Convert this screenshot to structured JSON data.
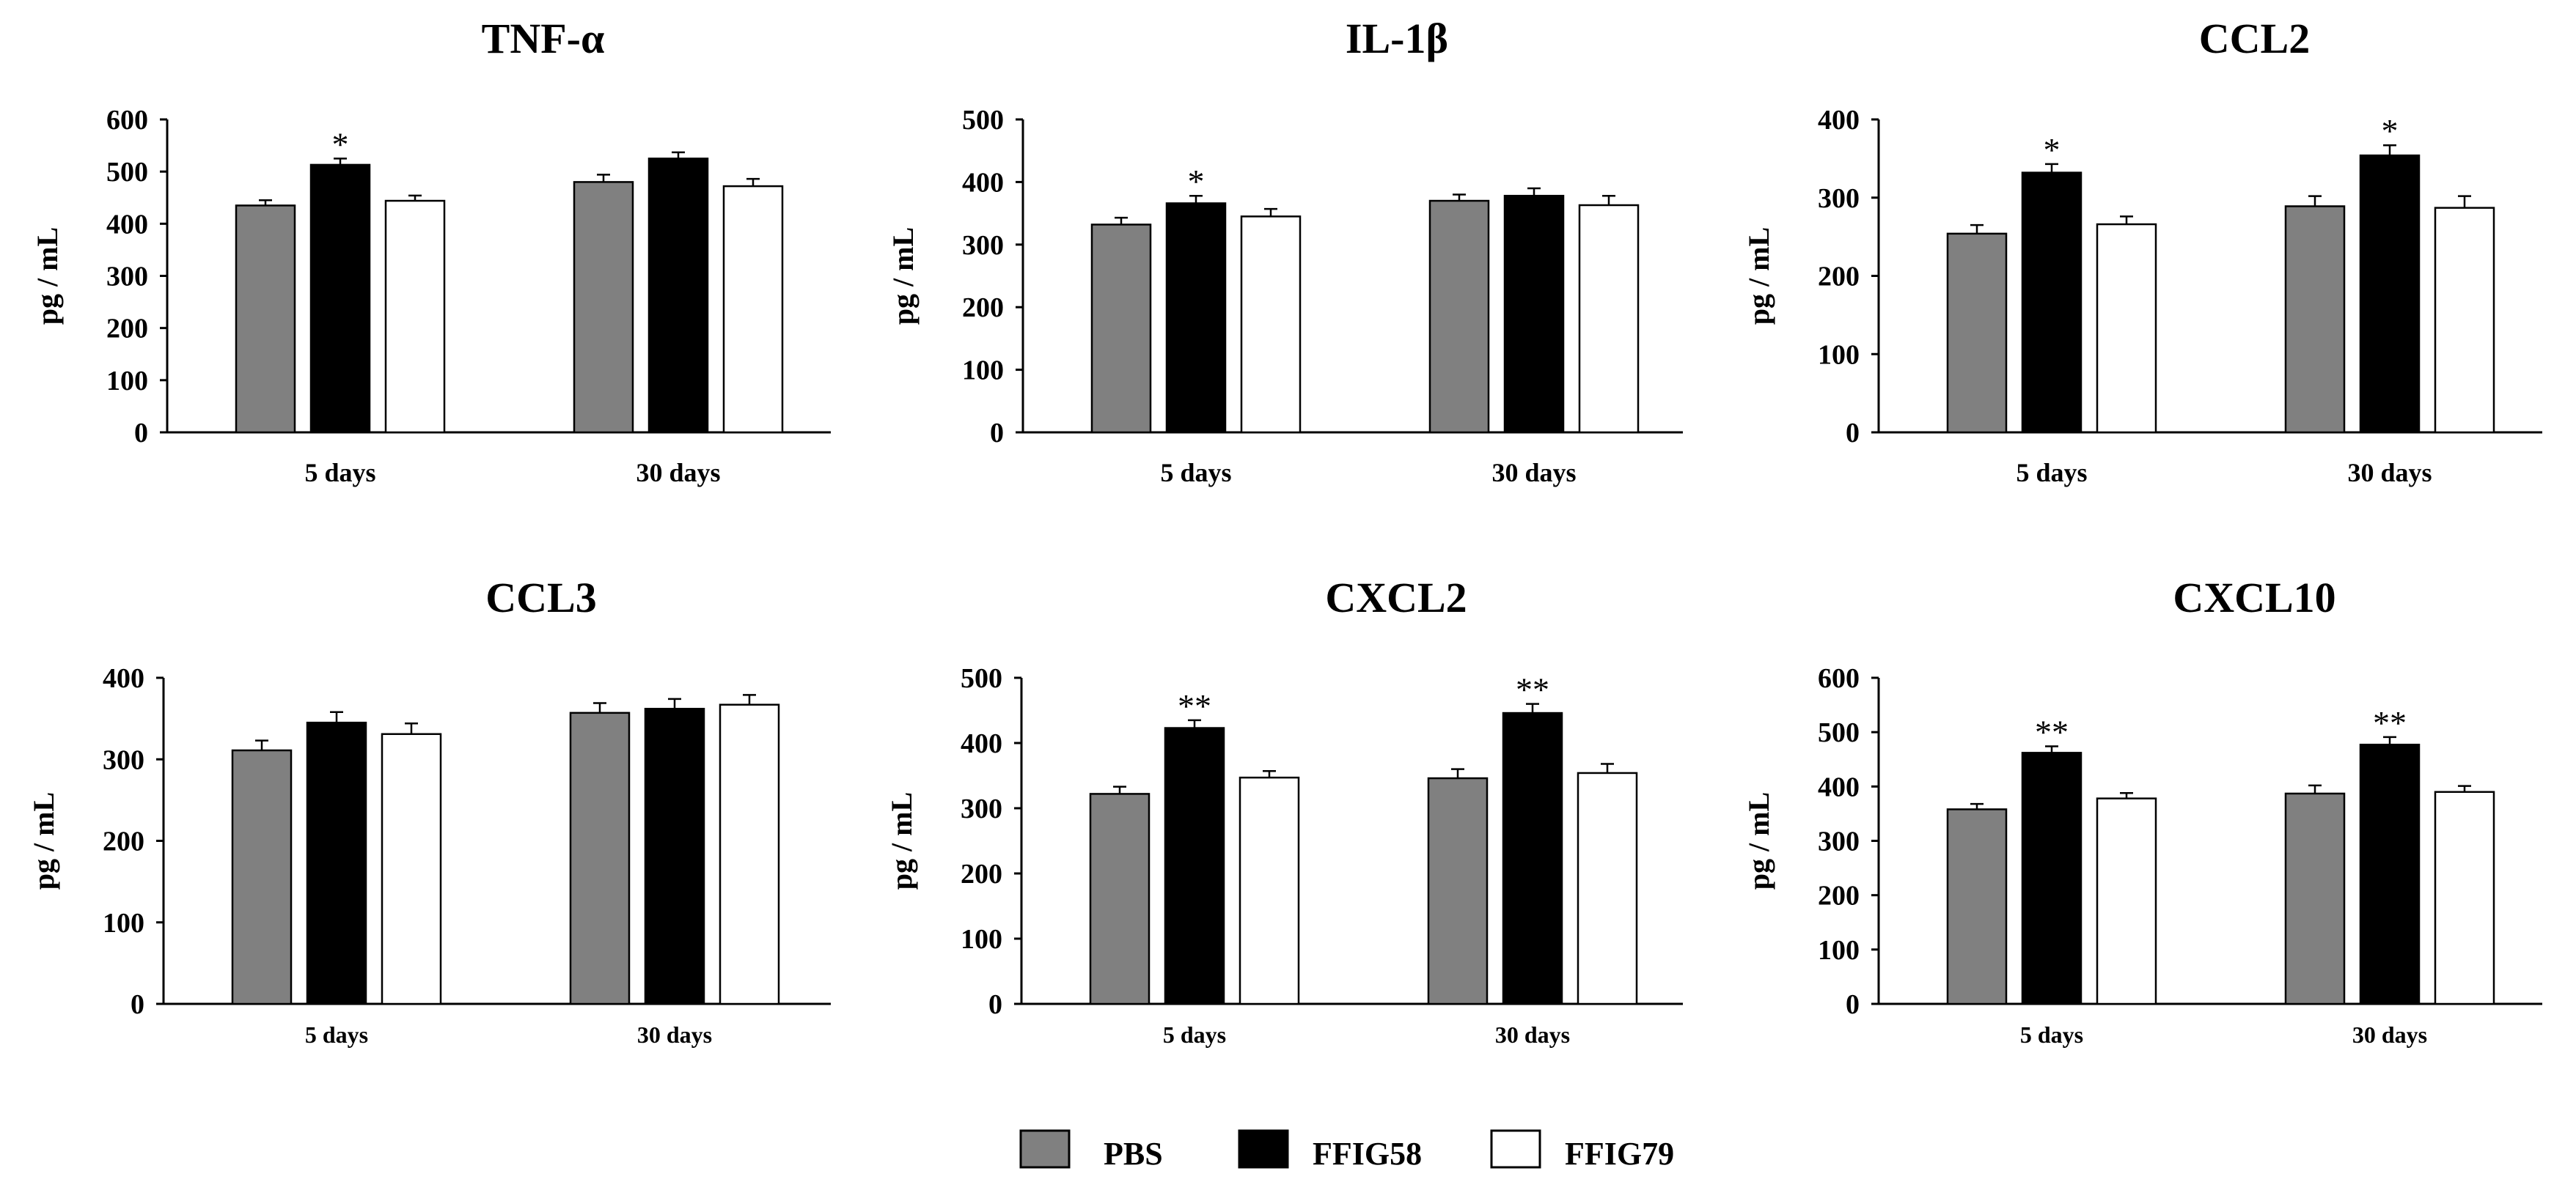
{
  "legend": [
    {
      "name": "PBS",
      "color": "#808080"
    },
    {
      "name": "FFIG58",
      "color": "#000000"
    },
    {
      "name": "FFIG79",
      "color": "#ffffff"
    }
  ],
  "chart_data": [
    {
      "type": "bar",
      "title": "TNF-α",
      "ylabel": "pg / mL",
      "ylim": [
        0,
        600
      ],
      "yticks": [
        "0",
        "100",
        "200",
        "300",
        "400",
        "500",
        "600"
      ],
      "categories": [
        "5 days",
        "30 days"
      ],
      "series": [
        {
          "name": "PBS",
          "values": [
            435,
            480
          ],
          "errors": [
            10,
            14
          ]
        },
        {
          "name": "FFIG58",
          "values": [
            513,
            525
          ],
          "errors": [
            12,
            12
          ]
        },
        {
          "name": "FFIG79",
          "values": [
            444,
            472
          ],
          "errors": [
            10,
            14
          ]
        }
      ],
      "annotations": [
        {
          "category": "5 days",
          "series": "FFIG58",
          "text": "*"
        }
      ]
    },
    {
      "type": "bar",
      "title": "IL-1β",
      "ylabel": "pg / mL",
      "ylim": [
        0,
        500
      ],
      "yticks": [
        "0",
        "100",
        "200",
        "300",
        "400",
        "500"
      ],
      "categories": [
        "5 days",
        "30 days"
      ],
      "series": [
        {
          "name": "PBS",
          "values": [
            332,
            370
          ],
          "errors": [
            11,
            10
          ]
        },
        {
          "name": "FFIG58",
          "values": [
            366,
            378
          ],
          "errors": [
            12,
            12
          ]
        },
        {
          "name": "FFIG79",
          "values": [
            345,
            363
          ],
          "errors": [
            12,
            15
          ]
        }
      ],
      "annotations": [
        {
          "category": "5 days",
          "series": "FFIG58",
          "text": "*"
        }
      ]
    },
    {
      "type": "bar",
      "title": "CCL2",
      "ylabel": "pg / mL",
      "ylim": [
        0,
        400
      ],
      "yticks": [
        "0",
        "100",
        "200",
        "300",
        "400"
      ],
      "categories": [
        "5 days",
        "30 days"
      ],
      "series": [
        {
          "name": "PBS",
          "values": [
            254,
            289
          ],
          "errors": [
            11,
            13
          ]
        },
        {
          "name": "FFIG58",
          "values": [
            332,
            354
          ],
          "errors": [
            11,
            13
          ]
        },
        {
          "name": "FFIG79",
          "values": [
            266,
            287
          ],
          "errors": [
            10,
            15
          ]
        }
      ],
      "annotations": [
        {
          "category": "5 days",
          "series": "FFIG58",
          "text": "*"
        },
        {
          "category": "30 days",
          "series": "FFIG58",
          "text": "*"
        }
      ]
    },
    {
      "type": "bar",
      "title": "CCL3",
      "ylabel": "pg / mL",
      "ylim": [
        0,
        400
      ],
      "yticks": [
        "0",
        "100",
        "200",
        "300",
        "400"
      ],
      "categories": [
        "5 days",
        "30 days"
      ],
      "series": [
        {
          "name": "PBS",
          "values": [
            311,
            357
          ],
          "errors": [
            12,
            12
          ]
        },
        {
          "name": "FFIG58",
          "values": [
            345,
            362
          ],
          "errors": [
            13,
            12
          ]
        },
        {
          "name": "FFIG79",
          "values": [
            331,
            367
          ],
          "errors": [
            13,
            12
          ]
        }
      ],
      "annotations": []
    },
    {
      "type": "bar",
      "title": "CXCL2",
      "ylabel": "pg / mL",
      "ylim": [
        0,
        500
      ],
      "yticks": [
        "0",
        "100",
        "200",
        "300",
        "400",
        "500"
      ],
      "categories": [
        "5 days",
        "30 days"
      ],
      "series": [
        {
          "name": "PBS",
          "values": [
            322,
            346
          ],
          "errors": [
            11,
            14
          ]
        },
        {
          "name": "FFIG58",
          "values": [
            423,
            446
          ],
          "errors": [
            12,
            14
          ]
        },
        {
          "name": "FFIG79",
          "values": [
            347,
            354
          ],
          "errors": [
            10,
            14
          ]
        }
      ],
      "annotations": [
        {
          "category": "5 days",
          "series": "FFIG58",
          "text": "**"
        },
        {
          "category": "30 days",
          "series": "FFIG58",
          "text": "**"
        }
      ]
    },
    {
      "type": "bar",
      "title": "CXCL10",
      "ylabel": "pg / mL",
      "ylim": [
        0,
        600
      ],
      "yticks": [
        "0",
        "100",
        "200",
        "300",
        "400",
        "500",
        "600"
      ],
      "categories": [
        "5 days",
        "30 days"
      ],
      "series": [
        {
          "name": "PBS",
          "values": [
            358,
            387
          ],
          "errors": [
            10,
            15
          ]
        },
        {
          "name": "FFIG58",
          "values": [
            462,
            477
          ],
          "errors": [
            12,
            14
          ]
        },
        {
          "name": "FFIG79",
          "values": [
            378,
            390
          ],
          "errors": [
            10,
            11
          ]
        }
      ],
      "annotations": [
        {
          "category": "5 days",
          "series": "FFIG58",
          "text": "**"
        },
        {
          "category": "30 days",
          "series": "FFIG58",
          "text": "**"
        }
      ]
    }
  ]
}
